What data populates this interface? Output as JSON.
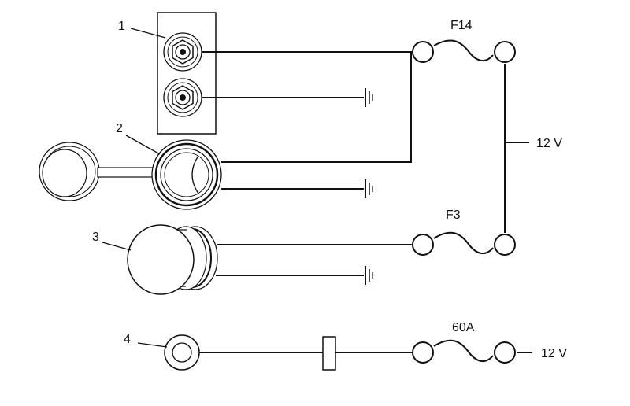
{
  "callouts": {
    "c1": "1",
    "c2": "2",
    "c3": "3",
    "c4": "4"
  },
  "fuses": {
    "f14": "F14",
    "f3": "F3",
    "main": "60A"
  },
  "supply": {
    "upper": "12 V",
    "lower": "12 V"
  }
}
